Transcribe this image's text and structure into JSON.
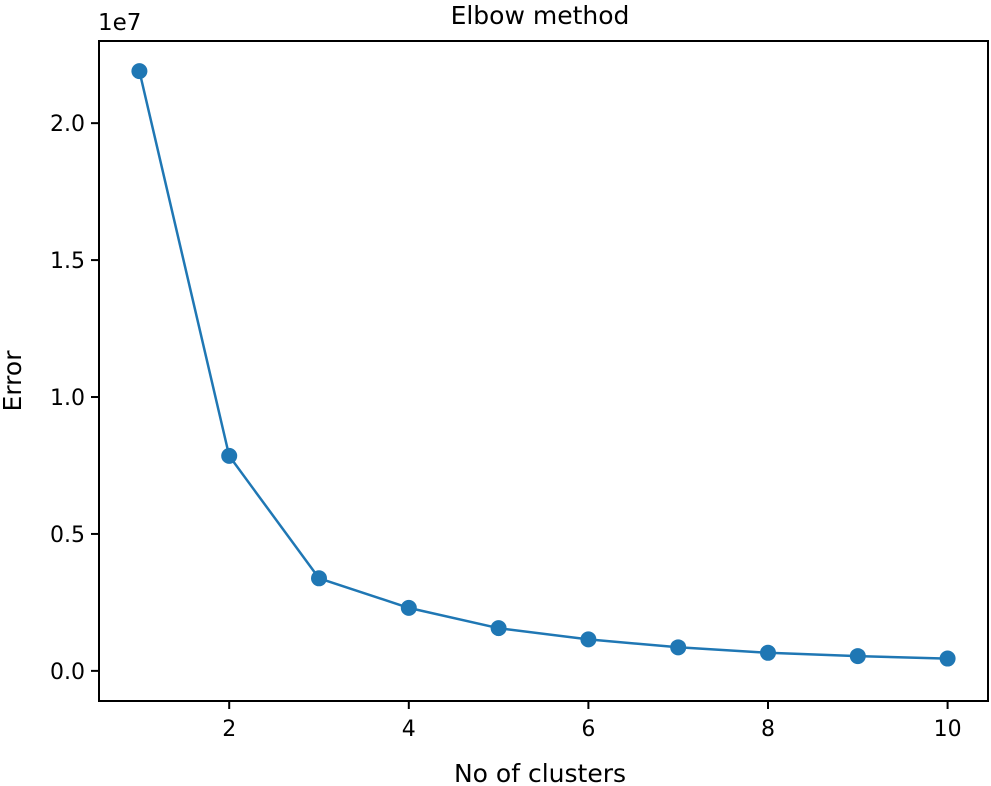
{
  "chart_data": {
    "type": "line",
    "title": "Elbow method",
    "xlabel": "No of clusters",
    "ylabel": "Error",
    "y_offset_label": "1e7",
    "y_scale": 10000000,
    "x": [
      1,
      2,
      3,
      4,
      5,
      6,
      7,
      8,
      9,
      10
    ],
    "series": [
      {
        "values": [
          21900000,
          7850000,
          3380000,
          2300000,
          1560000,
          1150000,
          860000,
          660000,
          540000,
          450000
        ]
      }
    ],
    "xlim": [
      0.55,
      10.45
    ],
    "ylim": [
      -0.11,
      2.3
    ],
    "xticks": [
      2,
      4,
      6,
      8,
      10
    ],
    "xtick_labels": [
      "2",
      "4",
      "6",
      "8",
      "10"
    ],
    "yticks": [
      0.0,
      0.5,
      1.0,
      1.5,
      2.0
    ],
    "ytick_labels": [
      "0.0",
      "0.5",
      "1.0",
      "1.5",
      "2.0"
    ],
    "grid": false,
    "line_color": "#1f77b4",
    "marker": "circle"
  }
}
